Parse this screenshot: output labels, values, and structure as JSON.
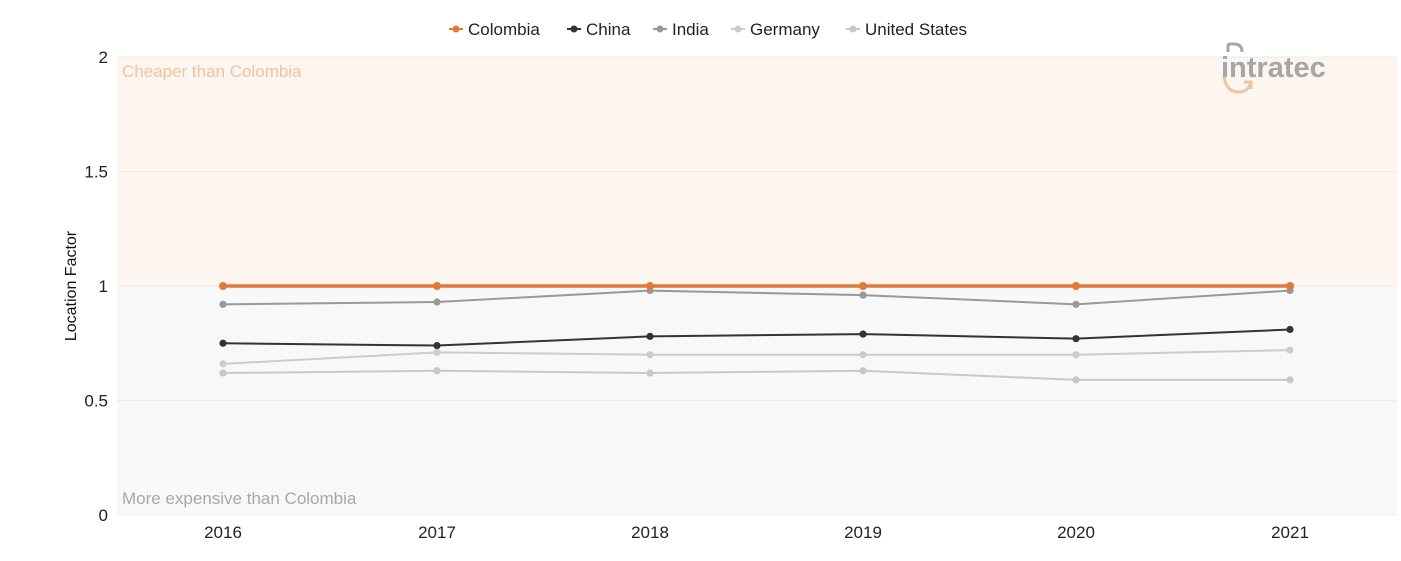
{
  "chart_data": {
    "type": "line",
    "title": "",
    "xlabel": "",
    "ylabel": "Location Factor",
    "x": [
      2016,
      2017,
      2018,
      2019,
      2020,
      2021
    ],
    "ylim": [
      0,
      2
    ],
    "yticks": [
      "0",
      "0.5",
      "1",
      "1.5",
      "2"
    ],
    "grid": true,
    "legend_position": "top-center",
    "series": [
      {
        "name": "Colombia",
        "color": "#e07a3a",
        "values": [
          1,
          1,
          1,
          1,
          1,
          1
        ]
      },
      {
        "name": "China",
        "color": "#333333",
        "values": [
          0.75,
          0.74,
          0.78,
          0.79,
          0.77,
          0.81
        ]
      },
      {
        "name": "India",
        "color": "#999999",
        "values": [
          0.92,
          0.93,
          0.98,
          0.96,
          0.92,
          0.98
        ]
      },
      {
        "name": "Germany",
        "color": "#cccccc",
        "values": [
          0.66,
          0.71,
          0.7,
          0.7,
          0.7,
          0.72
        ]
      },
      {
        "name": "United States",
        "color": "#c8c8c8",
        "values": [
          0.62,
          0.63,
          0.62,
          0.63,
          0.59,
          0.59
        ]
      }
    ],
    "regions": {
      "above": {
        "label": "Cheaper than Colombia",
        "range": [
          1,
          2
        ],
        "color": "#fdf5ef",
        "label_color": "#efc39f"
      },
      "below": {
        "label": "More expensive than Colombia",
        "range": [
          0,
          1
        ],
        "color": "#f8f8f8",
        "label_color": "#a8a8a8"
      }
    }
  },
  "logo": {
    "text": "intratec",
    "color": "#a6a6a6",
    "accent": "#efc39f"
  }
}
